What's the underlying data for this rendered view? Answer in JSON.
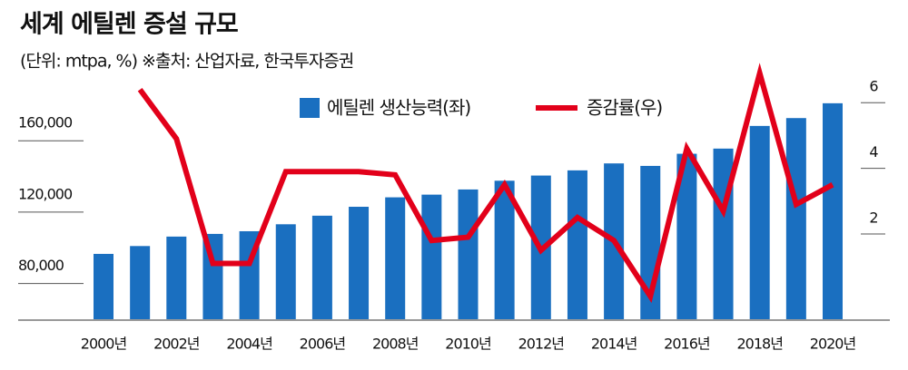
{
  "chart_data": {
    "type": "bar-line",
    "title": "세계 에틸렌 증설 규모",
    "subtitle": "(단위: mtpa, %) ※출처: 산업자료, 한국투자증권",
    "categories": [
      "2000년",
      null,
      "2002년",
      null,
      "2004년",
      null,
      "2006년",
      null,
      "2008년",
      null,
      "2010년",
      null,
      "2012년",
      null,
      "2014년",
      null,
      "2016년",
      null,
      "2018년",
      null,
      "2020년"
    ],
    "series": [
      {
        "name": "에틸렌 생산능력(좌)",
        "color": "#1a6fc0",
        "type": "bar",
        "values": [
          96600,
          101000,
          106300,
          107800,
          109300,
          113200,
          118000,
          123000,
          128300,
          129800,
          132700,
          137600,
          140500,
          143400,
          147300,
          145900,
          152700,
          155600,
          168300,
          172700,
          181000
        ]
      },
      {
        "name": "증감률(우)",
        "color": "#e2001a",
        "type": "line",
        "axis": "y2",
        "values": [
          null,
          6.4,
          4.9,
          1.1,
          1.1,
          3.9,
          3.9,
          3.9,
          3.8,
          1.8,
          1.9,
          3.5,
          1.5,
          2.5,
          1.8,
          0.1,
          4.6,
          2.7,
          6.9,
          2.9,
          3.5
        ]
      }
    ],
    "ylim": [
      60000,
      185000
    ],
    "yticks": [
      {
        "value": 80000,
        "label": "80,000"
      },
      {
        "value": 120000,
        "label": "120,000"
      },
      {
        "value": 160000,
        "label": "160,000"
      }
    ],
    "y2lim": [
      -0.6,
      6.2
    ],
    "y2ticks": [
      2,
      4,
      6
    ],
    "legend": "top"
  }
}
